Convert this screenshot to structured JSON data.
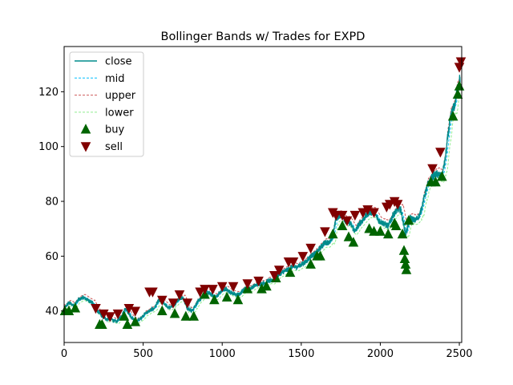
{
  "chart_data": {
    "type": "line",
    "title": "Bollinger Bands w/ Trades for EXPD",
    "xlabel": "",
    "ylabel": "",
    "xlim": [
      0,
      2515
    ],
    "ylim": [
      28.5,
      136.5
    ],
    "x_ticks": [
      0,
      500,
      1000,
      1500,
      2000,
      2500
    ],
    "y_ticks": [
      40,
      60,
      80,
      100,
      120
    ],
    "x_tick_labels": [
      "0",
      "500",
      "1000",
      "1500",
      "2000",
      "2500"
    ],
    "y_tick_labels": [
      "40",
      "60",
      "80",
      "100",
      "120"
    ],
    "grid": false,
    "legend_position": "top-left",
    "close_key_points": {
      "x": [
        0,
        30,
        60,
        90,
        120,
        150,
        180,
        210,
        240,
        270,
        300,
        330,
        360,
        390,
        420,
        450,
        480,
        510,
        540,
        570,
        600,
        630,
        660,
        690,
        720,
        750,
        780,
        810,
        840,
        870,
        900,
        930,
        960,
        990,
        1020,
        1050,
        1080,
        1110,
        1140,
        1170,
        1200,
        1230,
        1260,
        1290,
        1320,
        1350,
        1380,
        1410,
        1440,
        1470,
        1500,
        1530,
        1560,
        1590,
        1620,
        1650,
        1680,
        1700,
        1720,
        1750,
        1780,
        1810,
        1840,
        1870,
        1900,
        1930,
        1960,
        1990,
        2020,
        2050,
        2080,
        2110,
        2130,
        2160,
        2190,
        2220,
        2250,
        2280,
        2300,
        2330,
        2360,
        2390,
        2410,
        2430,
        2450,
        2470,
        2490,
        2510
      ],
      "y": [
        41,
        43,
        42,
        44,
        45,
        44,
        43,
        40,
        38,
        37,
        37,
        36,
        38,
        41,
        38,
        36,
        37,
        39,
        40,
        41,
        44,
        43,
        41,
        42,
        44,
        45,
        41,
        40,
        43,
        45,
        47,
        46,
        45,
        47,
        48,
        47,
        46,
        46,
        48,
        48,
        49,
        50,
        50,
        51,
        51,
        53,
        54,
        55,
        56,
        56,
        57,
        58,
        60,
        61,
        63,
        65,
        65,
        67,
        74,
        75,
        73,
        72,
        69,
        72,
        74,
        76,
        76,
        73,
        72,
        71,
        75,
        77,
        77,
        68,
        74,
        73,
        75,
        82,
        86,
        89,
        90,
        89,
        95,
        105,
        112,
        115,
        122,
        126
      ]
    },
    "band_width": 2.5,
    "series": [
      {
        "name": "close",
        "color": "#008B8B",
        "style": "solid"
      },
      {
        "name": "mid",
        "color": "#00BFFF",
        "style": "dashed"
      },
      {
        "name": "upper",
        "color": "#CD5C5C",
        "style": "dashed"
      },
      {
        "name": "lower",
        "color": "#90EE90",
        "style": "dashed"
      },
      {
        "name": "buy",
        "color": "#006400",
        "marker": "triangle-up"
      },
      {
        "name": "sell",
        "color": "#800000",
        "marker": "triangle-down"
      }
    ],
    "buy_trades": {
      "x": [
        5,
        30,
        70,
        225,
        240,
        380,
        400,
        450,
        620,
        700,
        770,
        820,
        890,
        950,
        1030,
        1100,
        1160,
        1250,
        1280,
        1340,
        1430,
        1560,
        1600,
        1620,
        1700,
        1760,
        1800,
        1830,
        1930,
        1960,
        2000,
        2050,
        2090,
        2100,
        2140,
        2150,
        2155,
        2160,
        2165,
        2180,
        2320,
        2350,
        2390,
        2460,
        2490,
        2500
      ],
      "y": [
        40,
        40,
        41,
        35,
        35,
        38,
        35,
        36,
        40,
        39,
        38,
        38,
        46,
        44,
        45,
        44,
        48,
        48,
        49,
        52,
        54,
        57,
        60,
        60,
        68,
        71,
        67,
        65,
        70,
        69,
        69,
        68,
        72,
        71,
        68,
        62,
        59,
        57,
        55,
        73,
        87,
        87,
        89,
        111,
        119,
        122
      ]
    },
    "sell_trades": {
      "x": [
        200,
        250,
        290,
        340,
        410,
        450,
        540,
        560,
        620,
        690,
        730,
        780,
        860,
        890,
        940,
        1000,
        1070,
        1160,
        1230,
        1330,
        1360,
        1420,
        1450,
        1510,
        1560,
        1650,
        1700,
        1720,
        1760,
        1790,
        1840,
        1890,
        1920,
        1960,
        2040,
        2060,
        2090,
        2110,
        2330,
        2380,
        2500,
        2510
      ],
      "y": [
        41,
        39,
        38,
        39,
        41,
        40,
        47,
        47,
        44,
        43,
        46,
        43,
        47,
        48,
        48,
        49,
        49,
        50,
        51,
        53,
        55,
        58,
        58,
        60,
        63,
        69,
        76,
        75,
        75,
        73,
        75,
        76,
        77,
        76,
        78,
        79,
        80,
        79,
        92,
        98,
        129,
        131
      ]
    },
    "legend_labels": [
      "close",
      "mid",
      "upper",
      "lower",
      "buy",
      "sell"
    ]
  }
}
